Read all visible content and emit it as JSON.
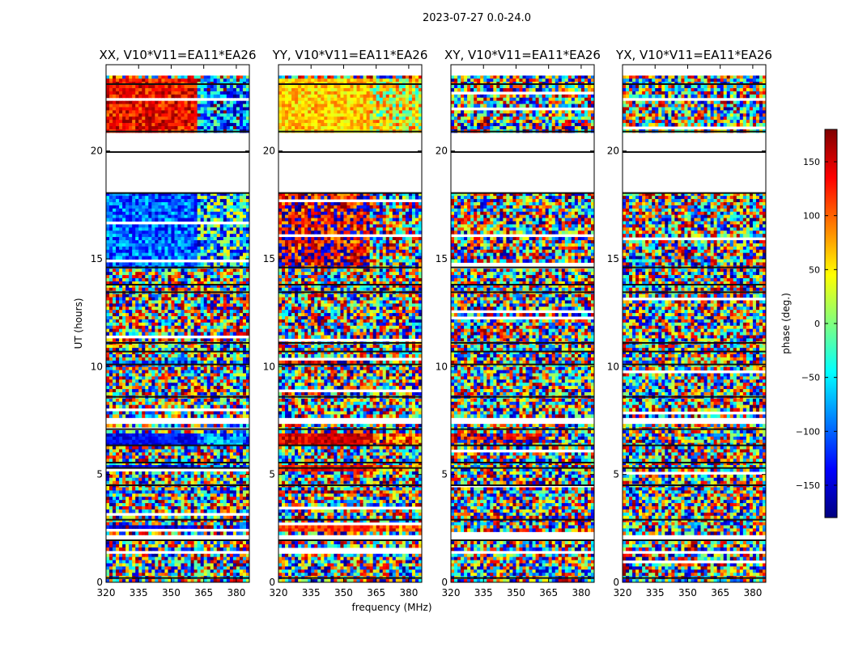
{
  "figure": {
    "suptitle": "2023-07-27 0.0-24.0",
    "xlabel": "frequency (MHz)",
    "ylabel": "UT (hours)"
  },
  "colorbar": {
    "label": "phase (deg.)",
    "ticks": [
      150,
      100,
      50,
      0,
      -50,
      -100,
      -150
    ],
    "tick_labels": [
      "150",
      "100",
      "50",
      "0",
      "−50",
      "−100",
      "−150"
    ],
    "range": [
      -180,
      180
    ],
    "colormap": "jet",
    "colors": [
      "#00007f",
      "#0000ff",
      "#007fff",
      "#00ffff",
      "#7fff7f",
      "#ffff00",
      "#ff7f00",
      "#ff0000",
      "#7f0000"
    ]
  },
  "chart_data": [
    {
      "type": "heatmap",
      "title": "XX, V10*V11=EA11*EA26",
      "xlim": [
        320,
        386
      ],
      "ylim": [
        0,
        24
      ],
      "x_ticks": [
        320,
        335,
        350,
        365,
        380
      ],
      "y_ticks": [
        0,
        5,
        10,
        15,
        20
      ],
      "panel_kind": "xx"
    },
    {
      "type": "heatmap",
      "title": "YY, V10*V11=EA11*EA26",
      "xlim": [
        320,
        386
      ],
      "ylim": [
        0,
        24
      ],
      "x_ticks": [
        320,
        335,
        350,
        365,
        380
      ],
      "y_ticks": [
        0,
        5,
        10,
        15,
        20
      ],
      "panel_kind": "yy"
    },
    {
      "type": "heatmap",
      "title": "XY, V10*V11=EA11*EA26",
      "xlim": [
        320,
        386
      ],
      "ylim": [
        0,
        24
      ],
      "x_ticks": [
        320,
        335,
        350,
        365,
        380
      ],
      "y_ticks": [
        0,
        5,
        10,
        15,
        20
      ],
      "panel_kind": "xy"
    },
    {
      "type": "heatmap",
      "title": "YX, V10*V11=EA11*EA26",
      "xlim": [
        320,
        386
      ],
      "ylim": [
        0,
        24
      ],
      "x_ticks": [
        320,
        335,
        350,
        365,
        380
      ],
      "y_ticks": [
        0,
        5,
        10,
        15,
        20
      ],
      "panel_kind": "yx"
    }
  ]
}
